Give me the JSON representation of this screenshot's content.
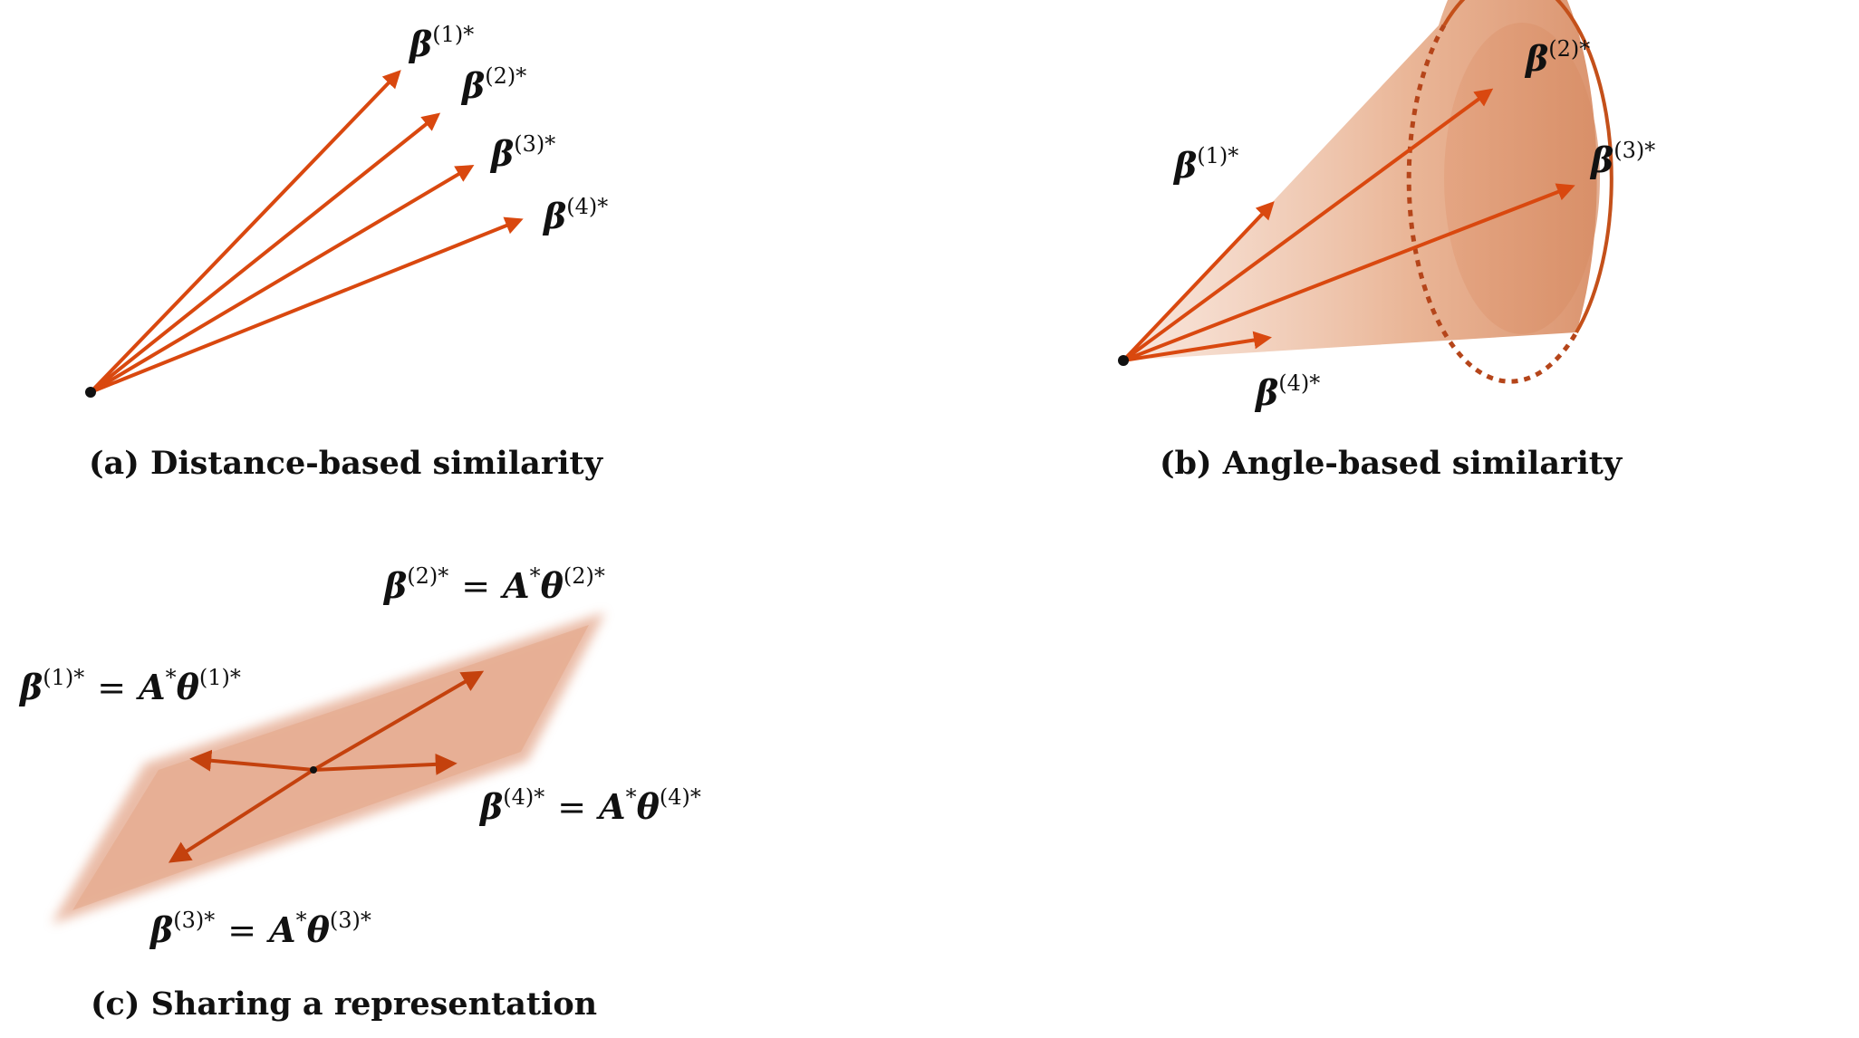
{
  "panels": {
    "distance": {
      "caption": "(a) Distance-based similarity",
      "vectors": [
        {
          "base": "β",
          "sup": "(1)*"
        },
        {
          "base": "β",
          "sup": "(2)*"
        },
        {
          "base": "β",
          "sup": "(3)*"
        },
        {
          "base": "β",
          "sup": "(4)*"
        }
      ]
    },
    "angle": {
      "caption": "(b) Angle-based similarity",
      "vectors": [
        {
          "base": "β",
          "sup": "(1)*"
        },
        {
          "base": "β",
          "sup": "(2)*"
        },
        {
          "base": "β",
          "sup": "(3)*"
        },
        {
          "base": "β",
          "sup": "(4)*"
        }
      ]
    },
    "representation": {
      "caption": "(c) Sharing a representation",
      "equations": [
        {
          "lhs": "β",
          "lhs_sup": "(1)*",
          "eq": "=",
          "a": "A",
          "a_sup": "*",
          "theta": "θ",
          "theta_sup": "(1)*"
        },
        {
          "lhs": "β",
          "lhs_sup": "(2)*",
          "eq": "=",
          "a": "A",
          "a_sup": "*",
          "theta": "θ",
          "theta_sup": "(2)*"
        },
        {
          "lhs": "β",
          "lhs_sup": "(3)*",
          "eq": "=",
          "a": "A",
          "a_sup": "*",
          "theta": "θ",
          "theta_sup": "(3)*"
        },
        {
          "lhs": "β",
          "lhs_sup": "(4)*",
          "eq": "=",
          "a": "A",
          "a_sup": "*",
          "theta": "θ",
          "theta_sup": "(4)*"
        }
      ]
    }
  },
  "colors": {
    "arrow": "#d9480f",
    "arrow_dark": "#b33a0c",
    "cone_fill": "#e8a888",
    "plane_fill": "#e2a184",
    "origin": "#111111"
  }
}
